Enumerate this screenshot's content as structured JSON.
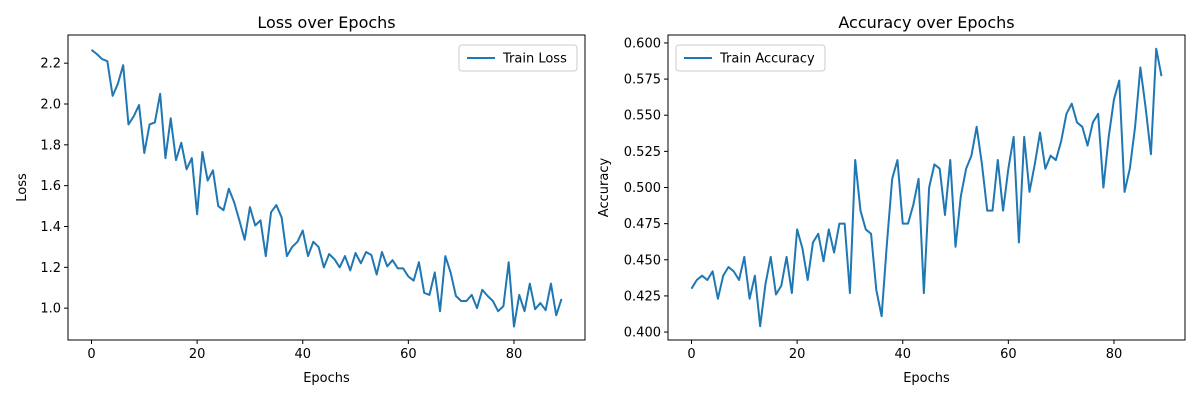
{
  "chart_data": [
    {
      "type": "line",
      "title": "Loss over Epochs",
      "xlabel": "Epochs",
      "ylabel": "Loss",
      "xlim": [
        -4.45,
        93.45
      ],
      "ylim": [
        0.844,
        2.338
      ],
      "xticks": [
        0,
        20,
        40,
        60,
        80
      ],
      "yticks": [
        1.0,
        1.2,
        1.4,
        1.6,
        1.8,
        2.0,
        2.2
      ],
      "ytick_decimals": 1,
      "legend_position": "top-right",
      "grid": false,
      "series": [
        {
          "name": "Train Loss",
          "color": "#1f77b4",
          "x": [
            0,
            1,
            2,
            3,
            4,
            5,
            6,
            7,
            8,
            9,
            10,
            11,
            12,
            13,
            14,
            15,
            16,
            17,
            18,
            19,
            20,
            21,
            22,
            23,
            24,
            25,
            26,
            27,
            28,
            29,
            30,
            31,
            32,
            33,
            34,
            35,
            36,
            37,
            38,
            39,
            40,
            41,
            42,
            43,
            44,
            45,
            46,
            47,
            48,
            49,
            50,
            51,
            52,
            53,
            54,
            55,
            56,
            57,
            58,
            59,
            60,
            61,
            62,
            63,
            64,
            65,
            66,
            67,
            68,
            69,
            70,
            71,
            72,
            73,
            74,
            75,
            76,
            77,
            78,
            79,
            80,
            81,
            82,
            83,
            84,
            85,
            86,
            87,
            88,
            89
          ],
          "values": [
            2.265,
            2.245,
            2.22,
            2.21,
            2.04,
            2.1,
            2.19,
            1.9,
            1.94,
            1.995,
            1.76,
            1.9,
            1.91,
            2.05,
            1.735,
            1.93,
            1.725,
            1.81,
            1.68,
            1.735,
            1.46,
            1.765,
            1.625,
            1.675,
            1.5,
            1.48,
            1.585,
            1.52,
            1.43,
            1.335,
            1.495,
            1.405,
            1.43,
            1.255,
            1.47,
            1.505,
            1.445,
            1.255,
            1.3,
            1.325,
            1.38,
            1.255,
            1.325,
            1.3,
            1.2,
            1.265,
            1.24,
            1.2,
            1.255,
            1.185,
            1.27,
            1.22,
            1.275,
            1.26,
            1.165,
            1.275,
            1.205,
            1.235,
            1.195,
            1.195,
            1.155,
            1.135,
            1.225,
            1.075,
            1.065,
            1.175,
            0.985,
            1.255,
            1.175,
            1.06,
            1.035,
            1.035,
            1.065,
            1.0,
            1.09,
            1.06,
            1.035,
            0.985,
            1.01,
            1.225,
            0.91,
            1.065,
            0.985,
            1.12,
            0.995,
            1.025,
            0.99,
            1.12,
            0.965,
            1.045
          ]
        }
      ]
    },
    {
      "type": "line",
      "title": "Accuracy over Epochs",
      "xlabel": "Epochs",
      "ylabel": "Accuracy",
      "xlim": [
        -4.45,
        93.45
      ],
      "ylim": [
        0.3945,
        0.6055
      ],
      "xticks": [
        0,
        20,
        40,
        60,
        80
      ],
      "yticks": [
        0.4,
        0.425,
        0.45,
        0.475,
        0.5,
        0.525,
        0.55,
        0.575,
        0.6
      ],
      "ytick_decimals": 3,
      "legend_position": "top-left",
      "grid": false,
      "series": [
        {
          "name": "Train Accuracy",
          "color": "#1f77b4",
          "x": [
            0,
            1,
            2,
            3,
            4,
            5,
            6,
            7,
            8,
            9,
            10,
            11,
            12,
            13,
            14,
            15,
            16,
            17,
            18,
            19,
            20,
            21,
            22,
            23,
            24,
            25,
            26,
            27,
            28,
            29,
            30,
            31,
            32,
            33,
            34,
            35,
            36,
            37,
            38,
            39,
            40,
            41,
            42,
            43,
            44,
            45,
            46,
            47,
            48,
            49,
            50,
            51,
            52,
            53,
            54,
            55,
            56,
            57,
            58,
            59,
            60,
            61,
            62,
            63,
            64,
            65,
            66,
            67,
            68,
            69,
            70,
            71,
            72,
            73,
            74,
            75,
            76,
            77,
            78,
            79,
            80,
            81,
            82,
            83,
            84,
            85,
            86,
            87,
            88,
            89
          ],
          "values": [
            0.43,
            0.436,
            0.439,
            0.436,
            0.442,
            0.423,
            0.439,
            0.445,
            0.442,
            0.436,
            0.452,
            0.423,
            0.439,
            0.404,
            0.433,
            0.452,
            0.426,
            0.432,
            0.452,
            0.427,
            0.471,
            0.458,
            0.436,
            0.462,
            0.468,
            0.449,
            0.471,
            0.455,
            0.475,
            0.475,
            0.427,
            0.519,
            0.484,
            0.471,
            0.468,
            0.429,
            0.411,
            0.461,
            0.506,
            0.519,
            0.475,
            0.475,
            0.488,
            0.506,
            0.427,
            0.5,
            0.516,
            0.513,
            0.481,
            0.519,
            0.459,
            0.494,
            0.513,
            0.522,
            0.542,
            0.516,
            0.484,
            0.484,
            0.519,
            0.484,
            0.513,
            0.535,
            0.462,
            0.535,
            0.497,
            0.516,
            0.538,
            0.513,
            0.522,
            0.519,
            0.532,
            0.551,
            0.558,
            0.545,
            0.542,
            0.529,
            0.545,
            0.551,
            0.5,
            0.535,
            0.561,
            0.574,
            0.497,
            0.513,
            0.542,
            0.583,
            0.555,
            0.523,
            0.596,
            0.577
          ]
        }
      ]
    }
  ]
}
